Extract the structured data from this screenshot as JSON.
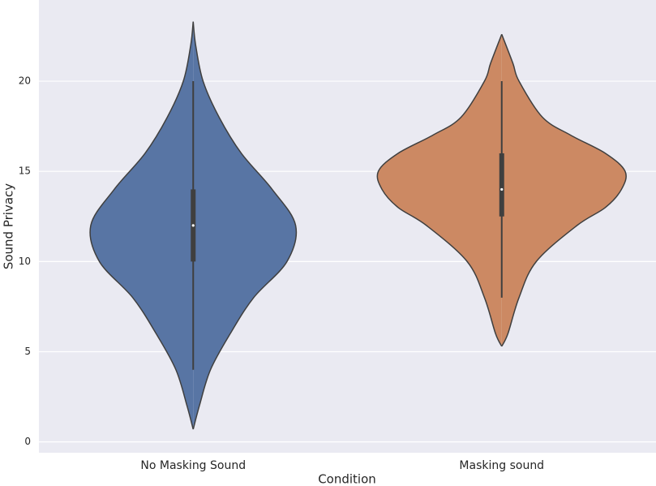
{
  "chart_data": {
    "type": "violin",
    "x_label": "Condition",
    "y_label": "Sound Privacy",
    "categories": [
      "No Masking Sound",
      "Masking sound"
    ],
    "ylim": [
      -0.6,
      24.5
    ],
    "yticks": [
      0,
      5,
      10,
      15,
      20
    ],
    "grid": true,
    "series": [
      {
        "color": "#5875a4",
        "min": 4,
        "q1": 10,
        "median": 12,
        "q3": 14,
        "max": 20,
        "density_y": [
          0.7,
          2,
          4,
          6,
          8,
          10,
          12,
          14,
          16,
          18,
          20,
          22,
          23.3
        ],
        "density_width": [
          0,
          0.05,
          0.14,
          0.3,
          0.49,
          0.76,
          0.83,
          0.64,
          0.39,
          0.21,
          0.08,
          0.02,
          0
        ]
      },
      {
        "color": "#cc8963",
        "min": 8,
        "q1": 12.5,
        "median": 14,
        "q3": 16,
        "max": 20,
        "density_y": [
          5.3,
          6,
          8,
          10,
          12,
          13,
          14,
          15,
          16,
          17,
          18,
          20,
          21,
          22.6
        ],
        "density_width": [
          0,
          0.05,
          0.14,
          0.28,
          0.61,
          0.84,
          0.97,
          1,
          0.84,
          0.56,
          0.33,
          0.14,
          0.09,
          0
        ]
      }
    ]
  }
}
